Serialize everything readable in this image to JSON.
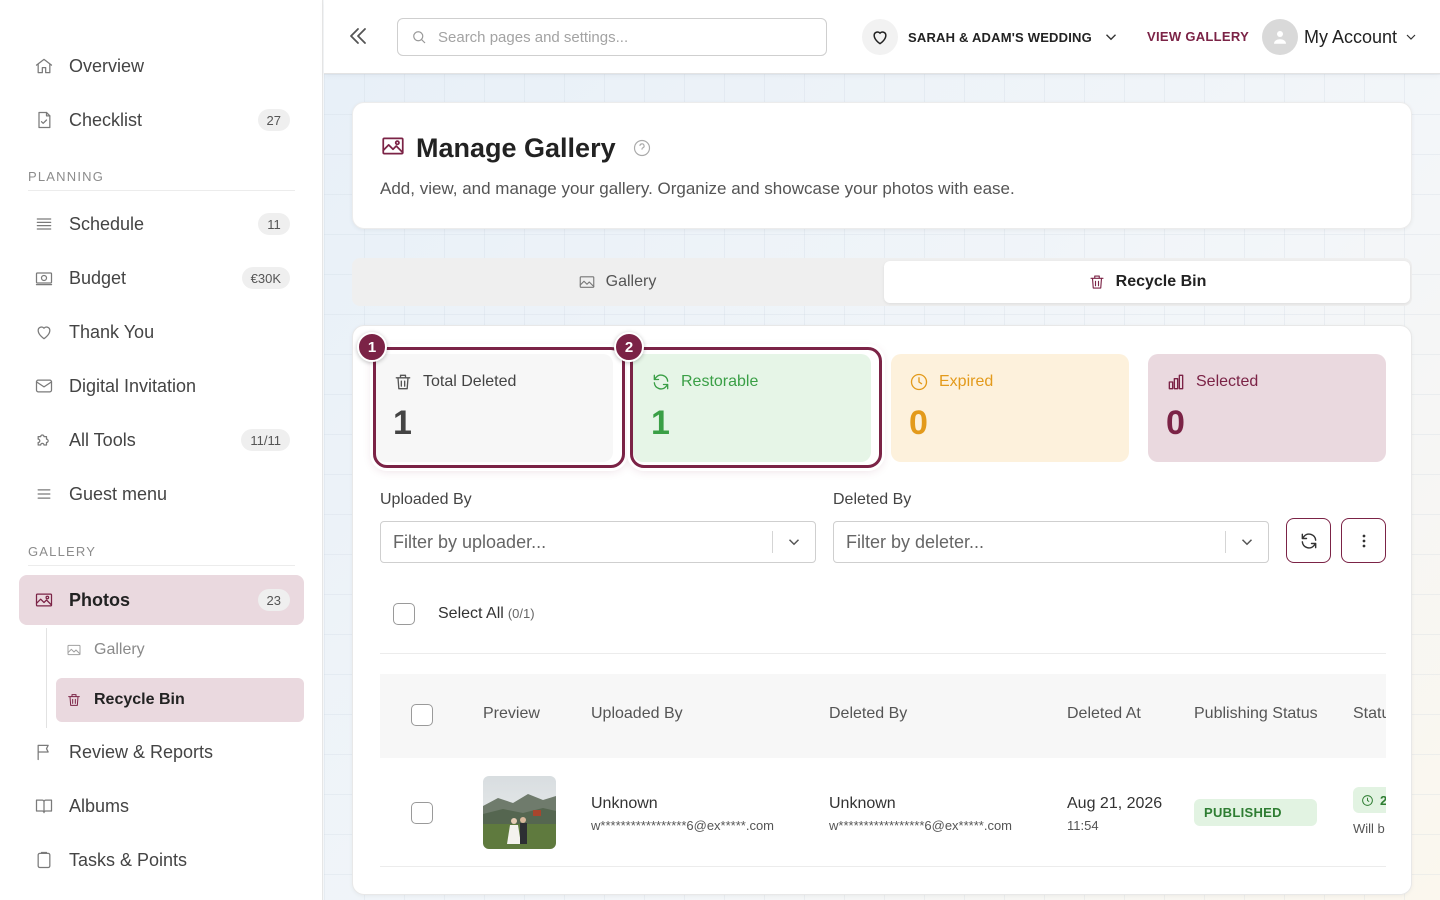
{
  "sidebar": {
    "overview": "Overview",
    "checklist": {
      "label": "Checklist",
      "badge": "27"
    },
    "planning_title": "PLANNING",
    "schedule": {
      "label": "Schedule",
      "badge": "11"
    },
    "budget": {
      "label": "Budget",
      "badge": "€30K"
    },
    "thank_you": "Thank You",
    "digital_invitation": "Digital Invitation",
    "all_tools": {
      "label": "All Tools",
      "badge": "11/11"
    },
    "guest_menu": "Guest menu",
    "gallery_title": "GALLERY",
    "photos": {
      "label": "Photos",
      "badge": "23"
    },
    "sub_gallery": "Gallery",
    "sub_recycle": "Recycle Bin",
    "review_reports": "Review & Reports",
    "albums": "Albums",
    "tasks_points": "Tasks & Points"
  },
  "topbar": {
    "search_placeholder": "Search pages and settings...",
    "event_name": "SARAH & ADAM'S WEDDING",
    "view_gallery": "VIEW GALLERY",
    "account": "My Account"
  },
  "header": {
    "title": "Manage Gallery",
    "description": "Add, view, and manage your gallery. Organize and showcase your photos with ease."
  },
  "tabs": {
    "gallery": "Gallery",
    "recycle_bin": "Recycle Bin"
  },
  "stats": {
    "total_deleted": {
      "label": "Total Deleted",
      "value": "1"
    },
    "restorable": {
      "label": "Restorable",
      "value": "1"
    },
    "expired": {
      "label": "Expired",
      "value": "0"
    },
    "selected": {
      "label": "Selected",
      "value": "0"
    }
  },
  "markers": {
    "first": "1",
    "second": "2"
  },
  "filters": {
    "uploaded_by_label": "Uploaded By",
    "uploaded_by_placeholder": "Filter by uploader...",
    "deleted_by_label": "Deleted By",
    "deleted_by_placeholder": "Filter by deleter..."
  },
  "select_all": {
    "label": "Select All",
    "count": "(0/1)"
  },
  "table": {
    "columns": [
      "Preview",
      "Uploaded By",
      "Deleted By",
      "Deleted At",
      "Publishing Status",
      "Statu"
    ],
    "rows": [
      {
        "uploaded_by_name": "Unknown",
        "uploaded_by_email": "w*****************6@ex*****.com",
        "deleted_by_name": "Unknown",
        "deleted_by_email": "w*****************6@ex*****.com",
        "deleted_date": "Aug 21, 2026",
        "deleted_time": "11:54",
        "publishing_status": "PUBLISHED",
        "state_chip": "2",
        "state_note": "Will b"
      }
    ]
  },
  "colors": {
    "brand": "#7b2346",
    "restorable": "#3a9f46",
    "expired": "#e39a1b",
    "selected_bg": "#ead9df"
  }
}
